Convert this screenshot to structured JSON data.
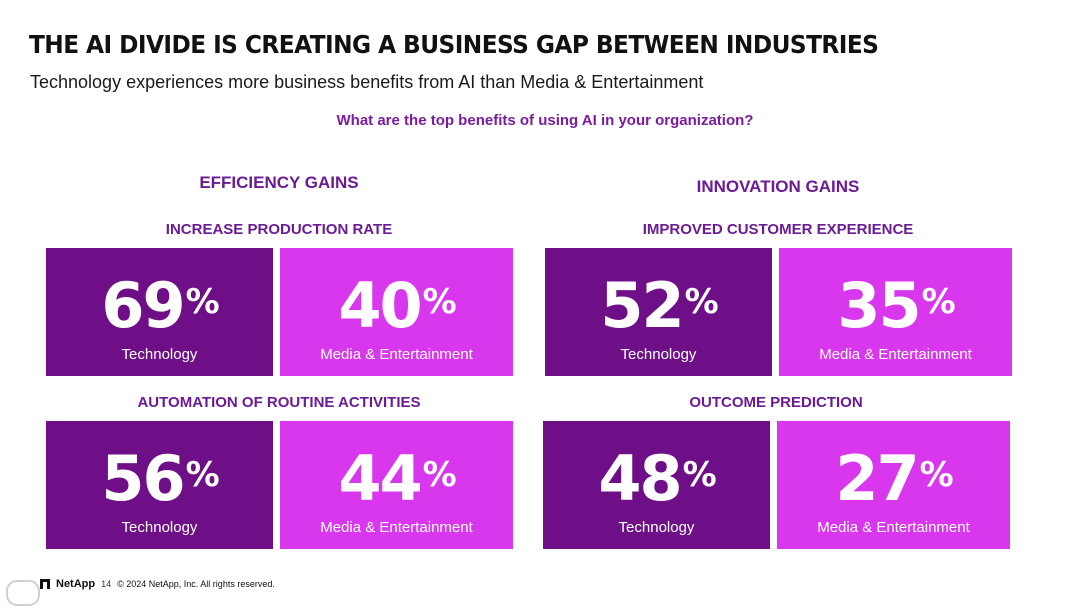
{
  "slide": {
    "title": "THE AI DIVIDE IS CREATING A BUSINESS GAP BETWEEN INDUSTRIES",
    "subtitle": "Technology experiences more business benefits from AI than Media & Entertainment",
    "question": "What are the top benefits of using AI in your organization?"
  },
  "groups": [
    {
      "title": "EFFICIENCY GAINS",
      "metrics": [
        {
          "title": "INCREASE PRODUCTION RATE",
          "technology": {
            "value": "69",
            "unit": "%",
            "label": "Technology"
          },
          "media": {
            "value": "40",
            "unit": "%",
            "label": "Media & Entertainment"
          }
        },
        {
          "title": "AUTOMATION OF ROUTINE ACTIVITIES",
          "technology": {
            "value": "56",
            "unit": "%",
            "label": "Technology"
          },
          "media": {
            "value": "44",
            "unit": "%",
            "label": "Media & Entertainment"
          }
        }
      ]
    },
    {
      "title": "INNOVATION GAINS",
      "metrics": [
        {
          "title": "IMPROVED CUSTOMER EXPERIENCE",
          "technology": {
            "value": "52",
            "unit": "%",
            "label": "Technology"
          },
          "media": {
            "value": "35",
            "unit": "%",
            "label": "Media & Entertainment"
          }
        },
        {
          "title": "OUTCOME PREDICTION",
          "technology": {
            "value": "48",
            "unit": "%",
            "label": "Technology"
          },
          "media": {
            "value": "27",
            "unit": "%",
            "label": "Media & Entertainment"
          }
        }
      ]
    }
  ],
  "colors": {
    "technology": "#6e0f87",
    "media": "#d837ee",
    "heading": "#6b1b93"
  },
  "footer": {
    "logo_text": "NetApp",
    "page_number": "14",
    "copyright": "© 2024 NetApp, Inc. All rights reserved.",
    "logo_icon": "netapp-logo-icon"
  }
}
